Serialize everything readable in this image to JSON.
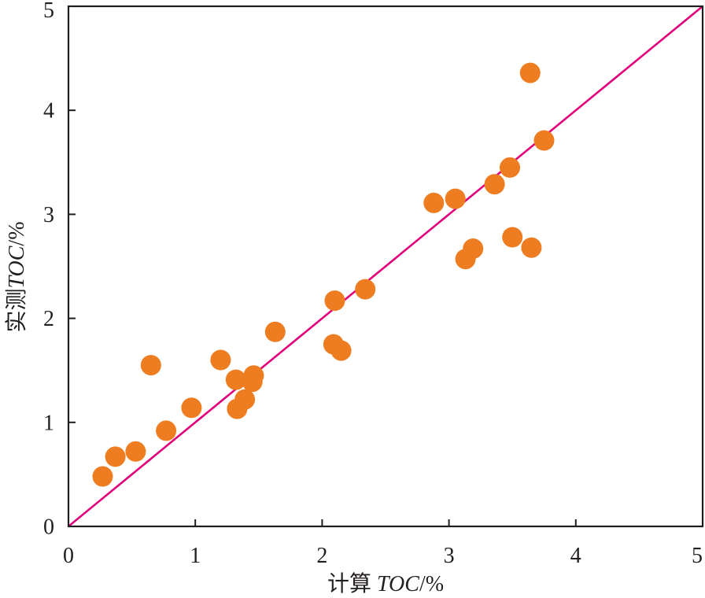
{
  "chart_data": {
    "type": "scatter",
    "xlabel": "计算 TOC/%",
    "ylabel": "实测TOC/%",
    "xlim": [
      0,
      5
    ],
    "ylim": [
      0,
      5
    ],
    "xticks": [
      0,
      1,
      2,
      3,
      4,
      5
    ],
    "yticks": [
      0,
      1,
      2,
      3,
      4,
      5
    ],
    "grid": false,
    "series": [
      {
        "color": "#ee7d21",
        "marker": "circle",
        "points": [
          [
            0.27,
            0.48
          ],
          [
            0.37,
            0.67
          ],
          [
            0.53,
            0.72
          ],
          [
            0.65,
            1.55
          ],
          [
            0.77,
            0.92
          ],
          [
            0.97,
            1.14
          ],
          [
            1.2,
            1.6
          ],
          [
            1.32,
            1.41
          ],
          [
            1.33,
            1.13
          ],
          [
            1.39,
            1.22
          ],
          [
            1.45,
            1.39
          ],
          [
            1.46,
            1.45
          ],
          [
            1.63,
            1.87
          ],
          [
            2.09,
            1.75
          ],
          [
            2.15,
            1.69
          ],
          [
            2.1,
            2.17
          ],
          [
            2.34,
            2.28
          ],
          [
            2.88,
            3.11
          ],
          [
            3.05,
            3.15
          ],
          [
            3.13,
            2.57
          ],
          [
            3.19,
            2.67
          ],
          [
            3.36,
            3.29
          ],
          [
            3.48,
            3.45
          ],
          [
            3.5,
            2.78
          ],
          [
            3.64,
            4.36
          ],
          [
            3.65,
            2.68
          ],
          [
            3.75,
            3.71
          ]
        ]
      }
    ],
    "reference_line": {
      "points": [
        [
          0,
          0
        ],
        [
          5,
          5
        ]
      ],
      "color": "#e2007a"
    },
    "frame_color": "#1e1e1e"
  }
}
